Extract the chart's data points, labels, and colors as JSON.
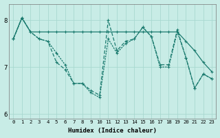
{
  "xlabel": "Humidex (Indice chaleur)",
  "ylabel": "",
  "background_color": "#c8ece6",
  "grid_color": "#a8d8d0",
  "line_color": "#1a7a6e",
  "xlim": [
    -0.5,
    23.5
  ],
  "ylim": [
    5.9,
    8.35
  ],
  "yticks": [
    6,
    7,
    8
  ],
  "xticks": [
    0,
    1,
    2,
    3,
    4,
    5,
    6,
    7,
    8,
    9,
    10,
    11,
    12,
    13,
    14,
    15,
    16,
    17,
    18,
    19,
    20,
    21,
    22,
    23
  ],
  "series": [
    [
      7.6,
      8.05,
      7.75,
      7.75,
      7.75,
      7.75,
      7.75,
      7.75,
      7.75,
      7.75,
      7.75,
      7.75,
      7.75,
      7.75,
      7.75,
      7.75,
      7.75,
      7.75,
      7.75,
      7.75,
      7.55,
      7.35,
      7.1,
      6.9
    ],
    [
      7.6,
      8.05,
      7.75,
      7.6,
      7.55,
      7.1,
      6.95,
      6.65,
      6.65,
      6.5,
      6.4,
      8.0,
      7.35,
      7.55,
      7.6,
      7.85,
      7.65,
      7.05,
      7.05,
      7.8,
      7.2,
      6.55,
      6.85,
      6.75
    ],
    [
      7.6,
      8.05,
      7.75,
      7.6,
      7.55,
      7.3,
      7.05,
      6.65,
      6.65,
      6.45,
      6.35,
      7.6,
      7.3,
      7.5,
      7.6,
      7.85,
      7.65,
      7.0,
      7.0,
      7.75,
      7.2,
      6.55,
      6.85,
      6.75
    ]
  ]
}
